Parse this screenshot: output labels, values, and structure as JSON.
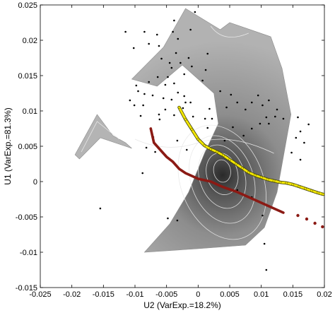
{
  "chart_data": {
    "type": "scatter",
    "title": "",
    "xlabel": "U2 (VarExp.=18.2%)",
    "ylabel": "U1 (VarExp.=81.3%)",
    "xlim": [
      -0.025,
      0.02
    ],
    "ylim": [
      -0.015,
      0.025
    ],
    "x_ticks": [
      "-0.025",
      "-0.02",
      "-0.015",
      "-0.01",
      "-0.005",
      "0",
      "0.005",
      "0.01",
      "0.015",
      "0.02"
    ],
    "y_ticks": [
      "-0.015",
      "-0.01",
      "-0.005",
      "0",
      "0.005",
      "0.01",
      "0.015",
      "0.02",
      "0.025"
    ],
    "grid": false,
    "legend": "none",
    "colors": {
      "surface_light": "#b4b4b4",
      "surface_mid": "#8c8c8c",
      "surface_dark": "#2e2e2e",
      "contour": "#e8e8e8",
      "points": "#000000",
      "yellow_series": "#f2e600",
      "red_series": "#8b1a14"
    },
    "surfaces": [
      {
        "name": "main",
        "points": [
          [
            -0.0105,
            0.0145
          ],
          [
            -0.0055,
            0.019
          ],
          [
            -0.002,
            0.0245
          ],
          [
            0.0035,
            0.0215
          ],
          [
            0.005,
            0.0225
          ],
          [
            0.0115,
            0.0205
          ],
          [
            0.0133,
            0.016
          ],
          [
            0.0147,
            0.0095
          ],
          [
            0.0125,
            -0.0015
          ],
          [
            0.0105,
            -0.0065
          ],
          [
            0.0075,
            -0.009
          ],
          [
            0.0,
            -0.0095
          ],
          [
            -0.0085,
            -0.01
          ],
          [
            -0.0045,
            -0.006
          ],
          [
            -0.0015,
            -0.0015
          ],
          [
            0.001,
            0.004
          ],
          [
            0.0032,
            0.0082
          ],
          [
            0.0025,
            0.0125
          ],
          [
            -0.0025,
            0.0165
          ],
          [
            -0.0065,
            0.0135
          ]
        ]
      },
      {
        "name": "left-v",
        "points": [
          [
            -0.0195,
            0.0038
          ],
          [
            -0.016,
            0.0095
          ],
          [
            -0.0135,
            0.0065
          ],
          [
            -0.0115,
            0.0055
          ],
          [
            -0.0105,
            0.0047
          ],
          [
            -0.0125,
            0.0053
          ],
          [
            -0.0155,
            0.0062
          ],
          [
            -0.0188,
            0.0032
          ]
        ]
      }
    ],
    "series": [
      {
        "points": [
          [
            -0.003,
            0.0105
          ],
          [
            -0.002,
            0.0088
          ],
          [
            -0.001,
            0.0074
          ],
          [
            0.0,
            0.006
          ],
          [
            0.001,
            0.0051
          ],
          [
            0.002,
            0.0046
          ],
          [
            0.003,
            0.0042
          ],
          [
            0.004,
            0.0037
          ],
          [
            0.005,
            0.0031
          ],
          [
            0.006,
            0.0025
          ],
          [
            0.007,
            0.0019
          ],
          [
            0.008,
            0.0013
          ],
          [
            0.009,
            0.0009
          ],
          [
            0.01,
            0.0006
          ],
          [
            0.011,
            0.0003
          ],
          [
            0.012,
            0.0001
          ],
          [
            0.013,
            -0.0001
          ],
          [
            0.014,
            -0.0002
          ],
          [
            0.015,
            -0.0004
          ],
          [
            0.016,
            -0.0007
          ],
          [
            0.017,
            -0.001
          ],
          [
            0.018,
            -0.0013
          ],
          [
            0.019,
            -0.0016
          ],
          [
            0.0198,
            -0.0018
          ]
        ]
      },
      {
        "points": [
          [
            -0.0075,
            0.0075
          ],
          [
            -0.007,
            0.0055
          ],
          [
            -0.006,
            0.0045
          ],
          [
            -0.005,
            0.0035
          ],
          [
            -0.004,
            0.0028
          ],
          [
            -0.003,
            0.0018
          ],
          [
            -0.002,
            0.0012
          ],
          [
            -0.001,
            0.0008
          ],
          [
            0.0,
            0.0004
          ],
          [
            0.001,
            0.0002
          ],
          [
            0.002,
            0.0
          ],
          [
            0.003,
            -0.0004
          ],
          [
            0.004,
            -0.0008
          ],
          [
            0.005,
            -0.0011
          ],
          [
            0.006,
            -0.0014
          ],
          [
            0.007,
            -0.0018
          ],
          [
            0.008,
            -0.0022
          ],
          [
            0.009,
            -0.0026
          ],
          [
            0.01,
            -0.003
          ],
          [
            0.011,
            -0.0034
          ],
          [
            0.012,
            -0.0038
          ],
          [
            0.013,
            -0.0042
          ],
          [
            0.0135,
            -0.0044
          ]
        ]
      },
      {
        "points": [
          [
            0.0158,
            -0.0048
          ],
          [
            0.0172,
            -0.0053
          ],
          [
            0.0185,
            -0.0059
          ],
          [
            0.0197,
            -0.0064
          ]
        ]
      }
    ],
    "scatter": [
      [
        -0.0005,
        0.024
      ],
      [
        -0.0038,
        0.0228
      ],
      [
        -0.004,
        0.0212
      ],
      [
        -0.0012,
        0.0215
      ],
      [
        -0.0065,
        0.0208
      ],
      [
        -0.0085,
        0.0212
      ],
      [
        -0.0115,
        0.0212
      ],
      [
        -0.0102,
        0.0189
      ],
      [
        -0.0078,
        0.0195
      ],
      [
        -0.0062,
        0.0192
      ],
      [
        -0.0032,
        0.0202
      ],
      [
        -0.0045,
        0.0168
      ],
      [
        -0.0058,
        0.0174
      ],
      [
        -0.0035,
        0.0182
      ],
      [
        -0.0042,
        0.0161
      ],
      [
        -0.0028,
        0.0168
      ],
      [
        -0.0015,
        0.0175
      ],
      [
        -0.001,
        0.0163
      ],
      [
        0.0012,
        0.0158
      ],
      [
        0.0015,
        0.0181
      ],
      [
        0.0007,
        0.0143
      ],
      [
        -0.0022,
        0.0152
      ],
      [
        -0.0048,
        0.0148
      ],
      [
        -0.0038,
        0.0139
      ],
      [
        -0.0064,
        0.0148
      ],
      [
        -0.0052,
        0.0137
      ],
      [
        -0.0078,
        0.0141
      ],
      [
        -0.0098,
        0.0136
      ],
      [
        -0.0085,
        0.0124
      ],
      [
        -0.0072,
        0.0122
      ],
      [
        -0.0055,
        0.0118
      ],
      [
        -0.0042,
        0.0116
      ],
      [
        -0.0032,
        0.0126
      ],
      [
        -0.0022,
        0.0121
      ],
      [
        -0.0012,
        0.0112
      ],
      [
        -0.0024,
        0.0104
      ],
      [
        -0.0052,
        0.0102
      ],
      [
        -0.0062,
        0.0095
      ],
      [
        -0.0091,
        0.0093
      ],
      [
        -0.0087,
        0.0108
      ],
      [
        -0.0101,
        0.0108
      ],
      [
        -0.0108,
        0.0115
      ],
      [
        -0.0095,
        0.0128
      ],
      [
        -0.0061,
        0.0088
      ],
      [
        -0.0038,
        0.0094
      ],
      [
        -0.0008,
        0.0092
      ],
      [
        0.0011,
        0.0089
      ],
      [
        0.0018,
        0.0103
      ],
      [
        0.0035,
        0.0128
      ],
      [
        0.0052,
        0.0123
      ],
      [
        0.0045,
        0.0105
      ],
      [
        0.0062,
        0.0112
      ],
      [
        0.0075,
        0.0102
      ],
      [
        0.0085,
        0.0112
      ],
      [
        0.0095,
        0.0122
      ],
      [
        0.0102,
        0.0108
      ],
      [
        0.0112,
        0.0115
      ],
      [
        0.0125,
        0.0102
      ],
      [
        0.0122,
        0.0092
      ],
      [
        0.0108,
        0.0091
      ],
      [
        0.0098,
        0.0082
      ],
      [
        0.0085,
        0.0075
      ],
      [
        0.0112,
        0.0082
      ],
      [
        0.0135,
        0.0089
      ],
      [
        0.0158,
        0.0091
      ],
      [
        0.0162,
        0.0071
      ],
      [
        0.0168,
        0.0055
      ],
      [
        0.0155,
        0.0062
      ],
      [
        0.0148,
        0.0041
      ],
      [
        0.0162,
        0.0031
      ],
      [
        0.0175,
        0.0081
      ],
      [
        0.0022,
        0.0089
      ],
      [
        0.0001,
        0.0058
      ],
      [
        -0.0033,
        0.0058
      ],
      [
        -0.0071,
        0.0063
      ],
      [
        -0.0082,
        0.0048
      ],
      [
        -0.0068,
        0.0042
      ],
      [
        -0.0088,
        0.0012
      ],
      [
        0.0042,
        0.0058
      ],
      [
        -0.0155,
        -0.0038
      ],
      [
        -0.0048,
        -0.0052
      ],
      [
        -0.0033,
        -0.0055
      ],
      [
        0.0062,
        -0.0012
      ],
      [
        0.0085,
        -0.0022
      ],
      [
        0.0105,
        -0.0088
      ],
      [
        0.0108,
        -0.0125
      ],
      [
        0.0102,
        -0.0048
      ],
      [
        0.0055,
        0.0077
      ],
      [
        0.0072,
        0.0065
      ],
      [
        0.0015,
        0.0076
      ],
      [
        -0.0018,
        0.0045
      ],
      [
        -0.002,
        0.0112
      ]
    ]
  }
}
